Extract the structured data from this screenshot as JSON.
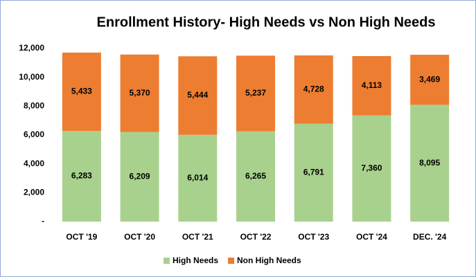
{
  "chart_data": {
    "type": "stacked_bar",
    "title": "Enrollment History- High Needs vs Non High Needs",
    "categories": [
      "OCT '19",
      "OCT '20",
      "OCT '21",
      "OCT '22",
      "OCT '23",
      "OCT '24",
      "DEC. '24"
    ],
    "series": [
      {
        "name": "High Needs",
        "color": "#a9d18e",
        "values": [
          6283,
          6209,
          6014,
          6265,
          6791,
          7360,
          8095
        ],
        "value_labels": [
          "6,283",
          "6,209",
          "6,014",
          "6,265",
          "6,791",
          "7,360",
          "8,095"
        ]
      },
      {
        "name": "Non High Needs",
        "color": "#ed7d31",
        "values": [
          5433,
          5370,
          5444,
          5237,
          4728,
          4113,
          3469
        ],
        "value_labels": [
          "5,433",
          "5,370",
          "5,444",
          "5,237",
          "4,728",
          "4,113",
          "3,469"
        ]
      }
    ],
    "ylim": [
      0,
      12000
    ],
    "yticks": [
      {
        "value": 0,
        "label": "-"
      },
      {
        "value": 2000,
        "label": "2,000"
      },
      {
        "value": 4000,
        "label": "4,000"
      },
      {
        "value": 6000,
        "label": "6,000"
      },
      {
        "value": 8000,
        "label": "8,000"
      },
      {
        "value": 10000,
        "label": "10,000"
      },
      {
        "value": 12000,
        "label": "12,000"
      }
    ],
    "grid": false,
    "legend": "bottom"
  }
}
